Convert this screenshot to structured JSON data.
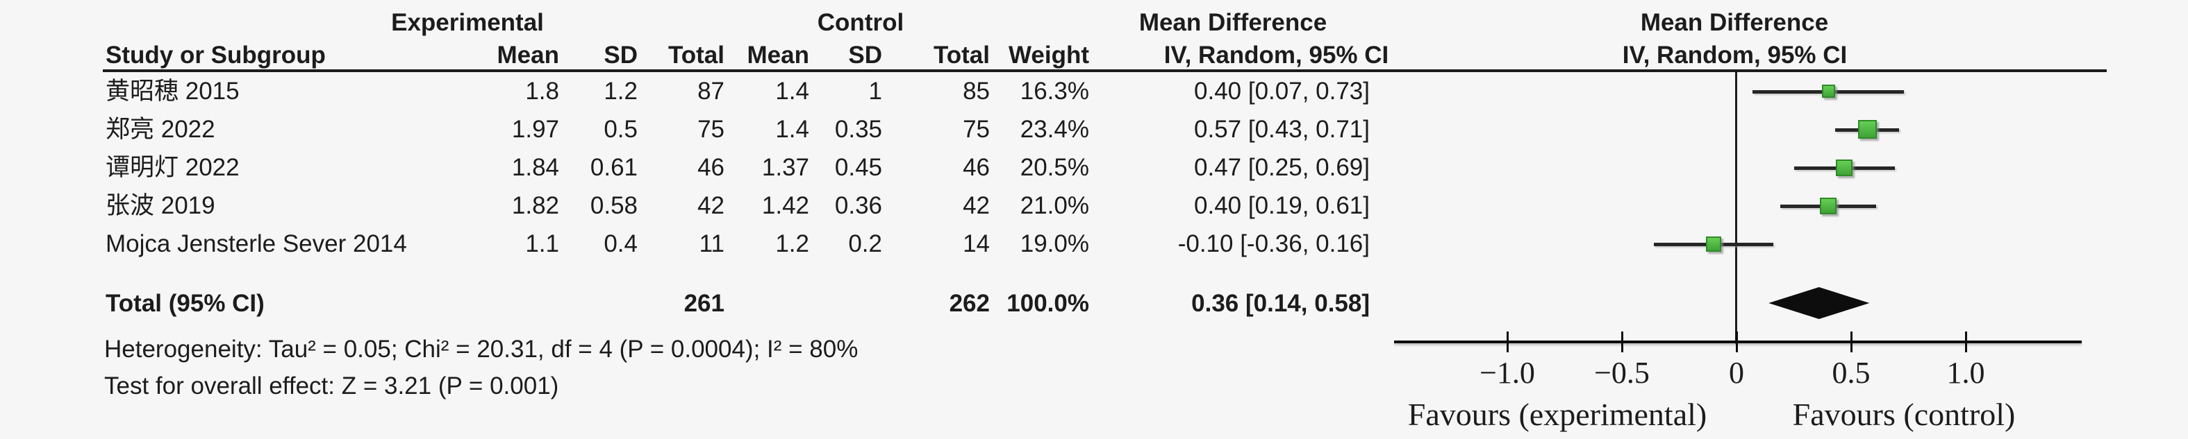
{
  "table": {
    "col_headers": {
      "group_experimental": "Experimental",
      "group_control": "Control",
      "md_left": "Mean Difference",
      "md_right": "Mean Difference",
      "study": "Study or Subgroup",
      "mean1": "Mean",
      "sd1": "SD",
      "total1": "Total",
      "mean2": "Mean",
      "sd2": "SD",
      "total2": "Total",
      "weight": "Weight",
      "iv_left": "IV, Random, 95% CI",
      "iv_right": "IV, Random, 95% CI"
    },
    "rows": [
      {
        "study": "黄昭穂 2015",
        "mean1": "1.8",
        "sd1": "1.2",
        "total1": "87",
        "mean2": "1.4",
        "sd2": "1",
        "total2": "85",
        "weight": "16.3%",
        "ci": "0.40 [0.07, 0.73]"
      },
      {
        "study": "郑亮 2022",
        "mean1": "1.97",
        "sd1": "0.5",
        "total1": "75",
        "mean2": "1.4",
        "sd2": "0.35",
        "total2": "75",
        "weight": "23.4%",
        "ci": "0.57 [0.43, 0.71]"
      },
      {
        "study": "谭明灯 2022",
        "mean1": "1.84",
        "sd1": "0.61",
        "total1": "46",
        "mean2": "1.37",
        "sd2": "0.45",
        "total2": "46",
        "weight": "20.5%",
        "ci": "0.47 [0.25, 0.69]"
      },
      {
        "study": "张波 2019",
        "mean1": "1.82",
        "sd1": "0.58",
        "total1": "42",
        "mean2": "1.42",
        "sd2": "0.36",
        "total2": "42",
        "weight": "21.0%",
        "ci": "0.40 [0.19, 0.61]"
      },
      {
        "study": "Mojca Jensterle Sever 2014",
        "mean1": "1.1",
        "sd1": "0.4",
        "total1": "11",
        "mean2": "1.2",
        "sd2": "0.2",
        "total2": "14",
        "weight": "19.0%",
        "ci": "-0.10 [-0.36, 0.16]"
      }
    ],
    "total_row": {
      "label": "Total (95% CI)",
      "total1": "261",
      "total2": "262",
      "weight": "100.0%",
      "ci": "0.36 [0.14, 0.58]"
    },
    "heterogeneity": "Heterogeneity: Tau² = 0.05; Chi² = 20.31, df = 4 (P = 0.0004); I² = 80%",
    "overall_effect": "Test for overall effect: Z = 3.21 (P = 0.001)"
  },
  "chart_data": {
    "type": "forest",
    "effect_measure": "Mean Difference, IV, Random, 95% CI",
    "x_axis": {
      "ticks": [
        -1.0,
        -0.5,
        0,
        0.5,
        1.0
      ],
      "tick_labels": [
        "−1.0",
        "−0.5",
        "0",
        "0.5",
        "1.0"
      ],
      "range_shown": [
        -1.5,
        1.5
      ],
      "label_left": "Favours (experimental)",
      "label_right": "Favours (control)"
    },
    "studies": [
      {
        "name": "黄昭穂 2015",
        "exp_mean": 1.8,
        "exp_sd": 1.2,
        "exp_total": 87,
        "ctrl_mean": 1.4,
        "ctrl_sd": 1,
        "ctrl_total": 85,
        "weight_pct": 16.3,
        "md": 0.4,
        "ci_low": 0.07,
        "ci_high": 0.73
      },
      {
        "name": "郑亮 2022",
        "exp_mean": 1.97,
        "exp_sd": 0.5,
        "exp_total": 75,
        "ctrl_mean": 1.4,
        "ctrl_sd": 0.35,
        "ctrl_total": 75,
        "weight_pct": 23.4,
        "md": 0.57,
        "ci_low": 0.43,
        "ci_high": 0.71
      },
      {
        "name": "谭明灯 2022",
        "exp_mean": 1.84,
        "exp_sd": 0.61,
        "exp_total": 46,
        "ctrl_mean": 1.37,
        "ctrl_sd": 0.45,
        "ctrl_total": 46,
        "weight_pct": 20.5,
        "md": 0.47,
        "ci_low": 0.25,
        "ci_high": 0.69
      },
      {
        "name": "张波 2019",
        "exp_mean": 1.82,
        "exp_sd": 0.58,
        "exp_total": 42,
        "ctrl_mean": 1.42,
        "ctrl_sd": 0.36,
        "ctrl_total": 42,
        "weight_pct": 21.0,
        "md": 0.4,
        "ci_low": 0.19,
        "ci_high": 0.61
      },
      {
        "name": "Mojca Jensterle Sever 2014",
        "exp_mean": 1.1,
        "exp_sd": 0.4,
        "exp_total": 11,
        "ctrl_mean": 1.2,
        "ctrl_sd": 0.2,
        "ctrl_total": 14,
        "weight_pct": 19.0,
        "md": -0.1,
        "ci_low": -0.36,
        "ci_high": 0.16
      }
    ],
    "total": {
      "label": "Total (95% CI)",
      "exp_total": 261,
      "ctrl_total": 262,
      "weight_pct": 100.0,
      "md": 0.36,
      "ci_low": 0.14,
      "ci_high": 0.58
    },
    "heterogeneity": {
      "tau2": 0.05,
      "chi2": 20.31,
      "df": 4,
      "p": 0.0004,
      "i2_pct": 80
    },
    "overall_effect": {
      "z": 3.21,
      "p": 0.001
    }
  },
  "colors": {
    "background": "#f6f6f6",
    "text": "#1c1c1c",
    "marker_green": "#4cb944",
    "diamond": "#0d0d0d"
  }
}
